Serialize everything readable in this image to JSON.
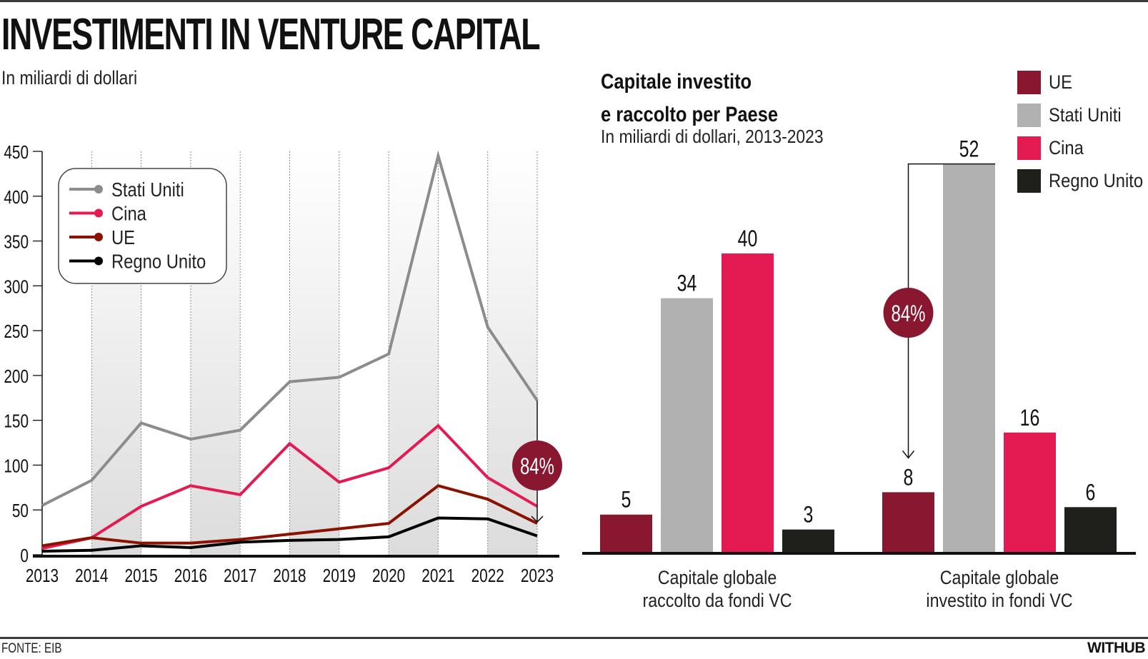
{
  "header": {
    "title": "INVESTIMENTI IN VENTURE CAPITAL",
    "subtitle": "In miliardi di dollari"
  },
  "footer": {
    "source": "FONTE: EIB",
    "brand": "WITHUB"
  },
  "colors": {
    "stati_uniti_line": "#8c8c8c",
    "cina": "#e31b52",
    "ue_line": "#8b1200",
    "regno_unito": "#000000",
    "ue_bar": "#8a1730",
    "stati_uniti_bar": "#b1b1b1",
    "regno_unito_bar": "#1f1f1b",
    "badge": "#8a1730"
  },
  "chart_data": [
    {
      "type": "line",
      "title": "INVESTIMENTI IN VENTURE CAPITAL",
      "subtitle": "In miliardi di dollari",
      "xlabel": "",
      "ylabel": "",
      "x": [
        2013,
        2014,
        2015,
        2016,
        2017,
        2018,
        2019,
        2020,
        2021,
        2022,
        2023
      ],
      "x_tick_labels": [
        "2013",
        "2014",
        "2015",
        "2016",
        "2017",
        "2018",
        "2019",
        "2020",
        "2021",
        "2022",
        "2023"
      ],
      "ylim": [
        0,
        450
      ],
      "y_ticks": [
        0,
        50,
        100,
        150,
        200,
        250,
        300,
        350,
        400,
        450
      ],
      "y_tick_labels": [
        "0",
        "50",
        "100",
        "150",
        "200",
        "250",
        "300",
        "350",
        "400",
        "450"
      ],
      "grid": "alternating shaded year bands with dashed vertical lines",
      "legend_position": "top-left",
      "series": [
        {
          "name": "Stati Uniti",
          "key": "stati_uniti_line",
          "values": [
            55,
            83,
            147,
            129,
            139,
            193,
            198,
            224,
            445,
            254,
            172
          ]
        },
        {
          "name": "Cina",
          "key": "cina",
          "values": [
            7,
            19,
            54,
            77,
            67,
            124,
            81,
            97,
            144,
            86,
            54
          ]
        },
        {
          "name": "UE",
          "key": "ue_line",
          "values": [
            10,
            19,
            13,
            13,
            17,
            23,
            29,
            35,
            77,
            62,
            35
          ]
        },
        {
          "name": "Regno Unito",
          "key": "regno_unito",
          "values": [
            4,
            5,
            10,
            8,
            14,
            16,
            17,
            20,
            41,
            40,
            21
          ]
        }
      ],
      "annotation": {
        "label": "84%",
        "year": 2023,
        "from_series": "Stati Uniti",
        "to_series": "UE"
      }
    },
    {
      "type": "bar",
      "title": "Capitale investito e raccolto per Paese",
      "title_lines": [
        "Capitale investito",
        "e raccolto per Paese"
      ],
      "subtitle": "In miliardi di dollari, 2013-2023",
      "categories": [
        "Capitale globale raccolto da fondi VC",
        "Capitale globale investito in fondi VC"
      ],
      "category_lines": [
        [
          "Capitale globale",
          "raccolto da fondi VC"
        ],
        [
          "Capitale globale",
          "investito in fondi VC"
        ]
      ],
      "legend_position": "top-right",
      "series": [
        {
          "name": "UE",
          "key": "ue_bar",
          "values": [
            5,
            8
          ],
          "labels": [
            "5",
            "8"
          ]
        },
        {
          "name": "Stati Uniti",
          "key": "stati_uniti_bar",
          "values": [
            34,
            52
          ],
          "labels": [
            "34",
            "52"
          ]
        },
        {
          "name": "Cina",
          "key": "cina",
          "values": [
            40,
            16
          ],
          "labels": [
            "40",
            "16"
          ]
        },
        {
          "name": "Regno Unito",
          "key": "regno_unito_bar",
          "values": [
            3,
            6
          ],
          "labels": [
            "3",
            "6"
          ]
        }
      ],
      "ylim": [
        0,
        52
      ],
      "annotation": {
        "label": "84%",
        "category": 1,
        "from_series": "Stati Uniti",
        "to_series": "UE"
      }
    }
  ]
}
